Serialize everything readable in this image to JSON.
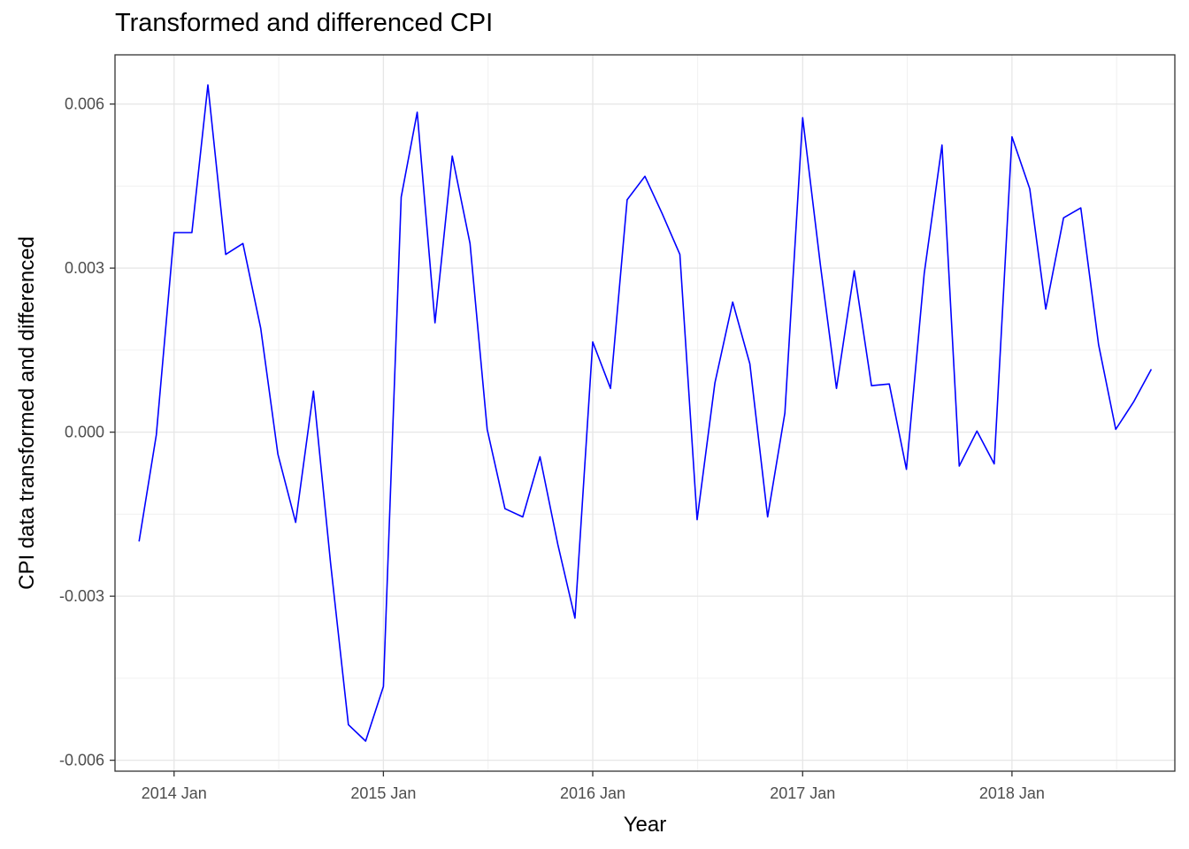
{
  "chart_data": {
    "type": "line",
    "title": "Transformed and differenced CPI",
    "xlabel": "Year",
    "ylabel": "CPI data transformed and differenced",
    "x_ticks": [
      {
        "value": "2014-01",
        "label": "2014 Jan"
      },
      {
        "value": "2015-01",
        "label": "2015 Jan"
      },
      {
        "value": "2016-01",
        "label": "2016 Jan"
      },
      {
        "value": "2017-01",
        "label": "2017 Jan"
      },
      {
        "value": "2018-01",
        "label": "2018 Jan"
      }
    ],
    "y_ticks": [
      {
        "value": 0.006,
        "label": "0.006"
      },
      {
        "value": 0.003,
        "label": "0.003"
      },
      {
        "value": 0.0,
        "label": "0.000"
      },
      {
        "value": -0.003,
        "label": "-0.003"
      },
      {
        "value": -0.006,
        "label": "-0.006"
      }
    ],
    "xlim": [
      "2013-09-20",
      "2018-10-12"
    ],
    "ylim": [
      -0.0062,
      0.0069
    ],
    "grid": true,
    "line_color": "#0000ff",
    "series": [
      {
        "x": [
          "2013-11",
          "2013-12",
          "2014-01",
          "2014-02",
          "2014-03",
          "2014-04",
          "2014-05",
          "2014-06",
          "2014-07",
          "2014-08",
          "2014-09",
          "2014-10",
          "2014-11",
          "2014-12",
          "2015-01",
          "2015-02",
          "2015-03",
          "2015-04",
          "2015-05",
          "2015-06",
          "2015-07",
          "2015-08",
          "2015-09",
          "2015-10",
          "2015-11",
          "2015-12",
          "2016-01",
          "2016-02",
          "2016-03",
          "2016-04",
          "2016-05",
          "2016-06",
          "2016-07",
          "2016-08",
          "2016-09",
          "2016-10",
          "2016-11",
          "2016-12",
          "2017-01",
          "2017-02",
          "2017-03",
          "2017-04",
          "2017-05",
          "2017-06",
          "2017-07",
          "2017-08",
          "2017-09",
          "2017-10",
          "2017-11",
          "2017-12",
          "2018-01",
          "2018-02",
          "2018-03",
          "2018-04",
          "2018-05",
          "2018-06",
          "2018-07",
          "2018-08",
          "2018-09"
        ],
        "values": [
          -0.002,
          -5e-05,
          0.00365,
          0.00365,
          0.00635,
          0.00325,
          0.00345,
          0.0019,
          -0.0004,
          -0.00165,
          0.00075,
          -0.0024,
          -0.00535,
          -0.00565,
          -0.00465,
          0.0043,
          0.00585,
          0.002,
          0.00505,
          0.00345,
          5e-05,
          -0.0014,
          -0.00155,
          -0.00045,
          -0.00205,
          -0.0034,
          0.00165,
          0.0008,
          0.00425,
          0.00468,
          0.004,
          0.00325,
          -0.0016,
          0.0009,
          0.00238,
          0.00125,
          -0.00155,
          0.00035,
          0.00575,
          0.00305,
          0.0008,
          0.00295,
          0.00085,
          0.00088,
          -0.00068,
          0.0029,
          0.00525,
          -0.00062,
          2e-05,
          -0.00058,
          0.0054,
          0.00445,
          0.00225,
          0.00392,
          0.0041,
          0.0016,
          5e-05,
          0.00055,
          0.00115
        ]
      }
    ]
  }
}
